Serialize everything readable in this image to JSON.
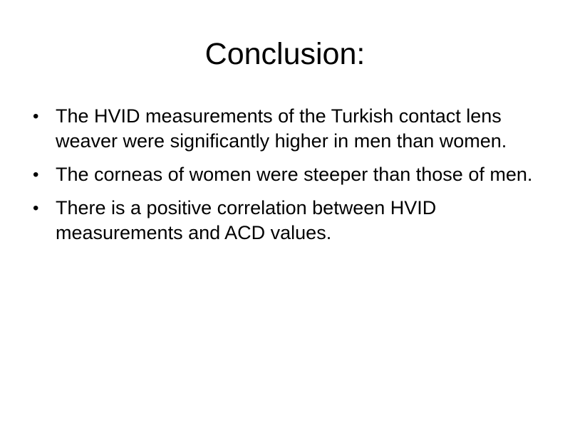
{
  "slide": {
    "title": "Conclusion:",
    "bullet_symbol": "•",
    "bullets": [
      "The HVID measurements of the Turkish contact lens weaver were significantly higher in men than women.",
      "The corneas of women were steeper than those of men.",
      "There is a positive correlation between HVID measurements and ACD values."
    ]
  }
}
